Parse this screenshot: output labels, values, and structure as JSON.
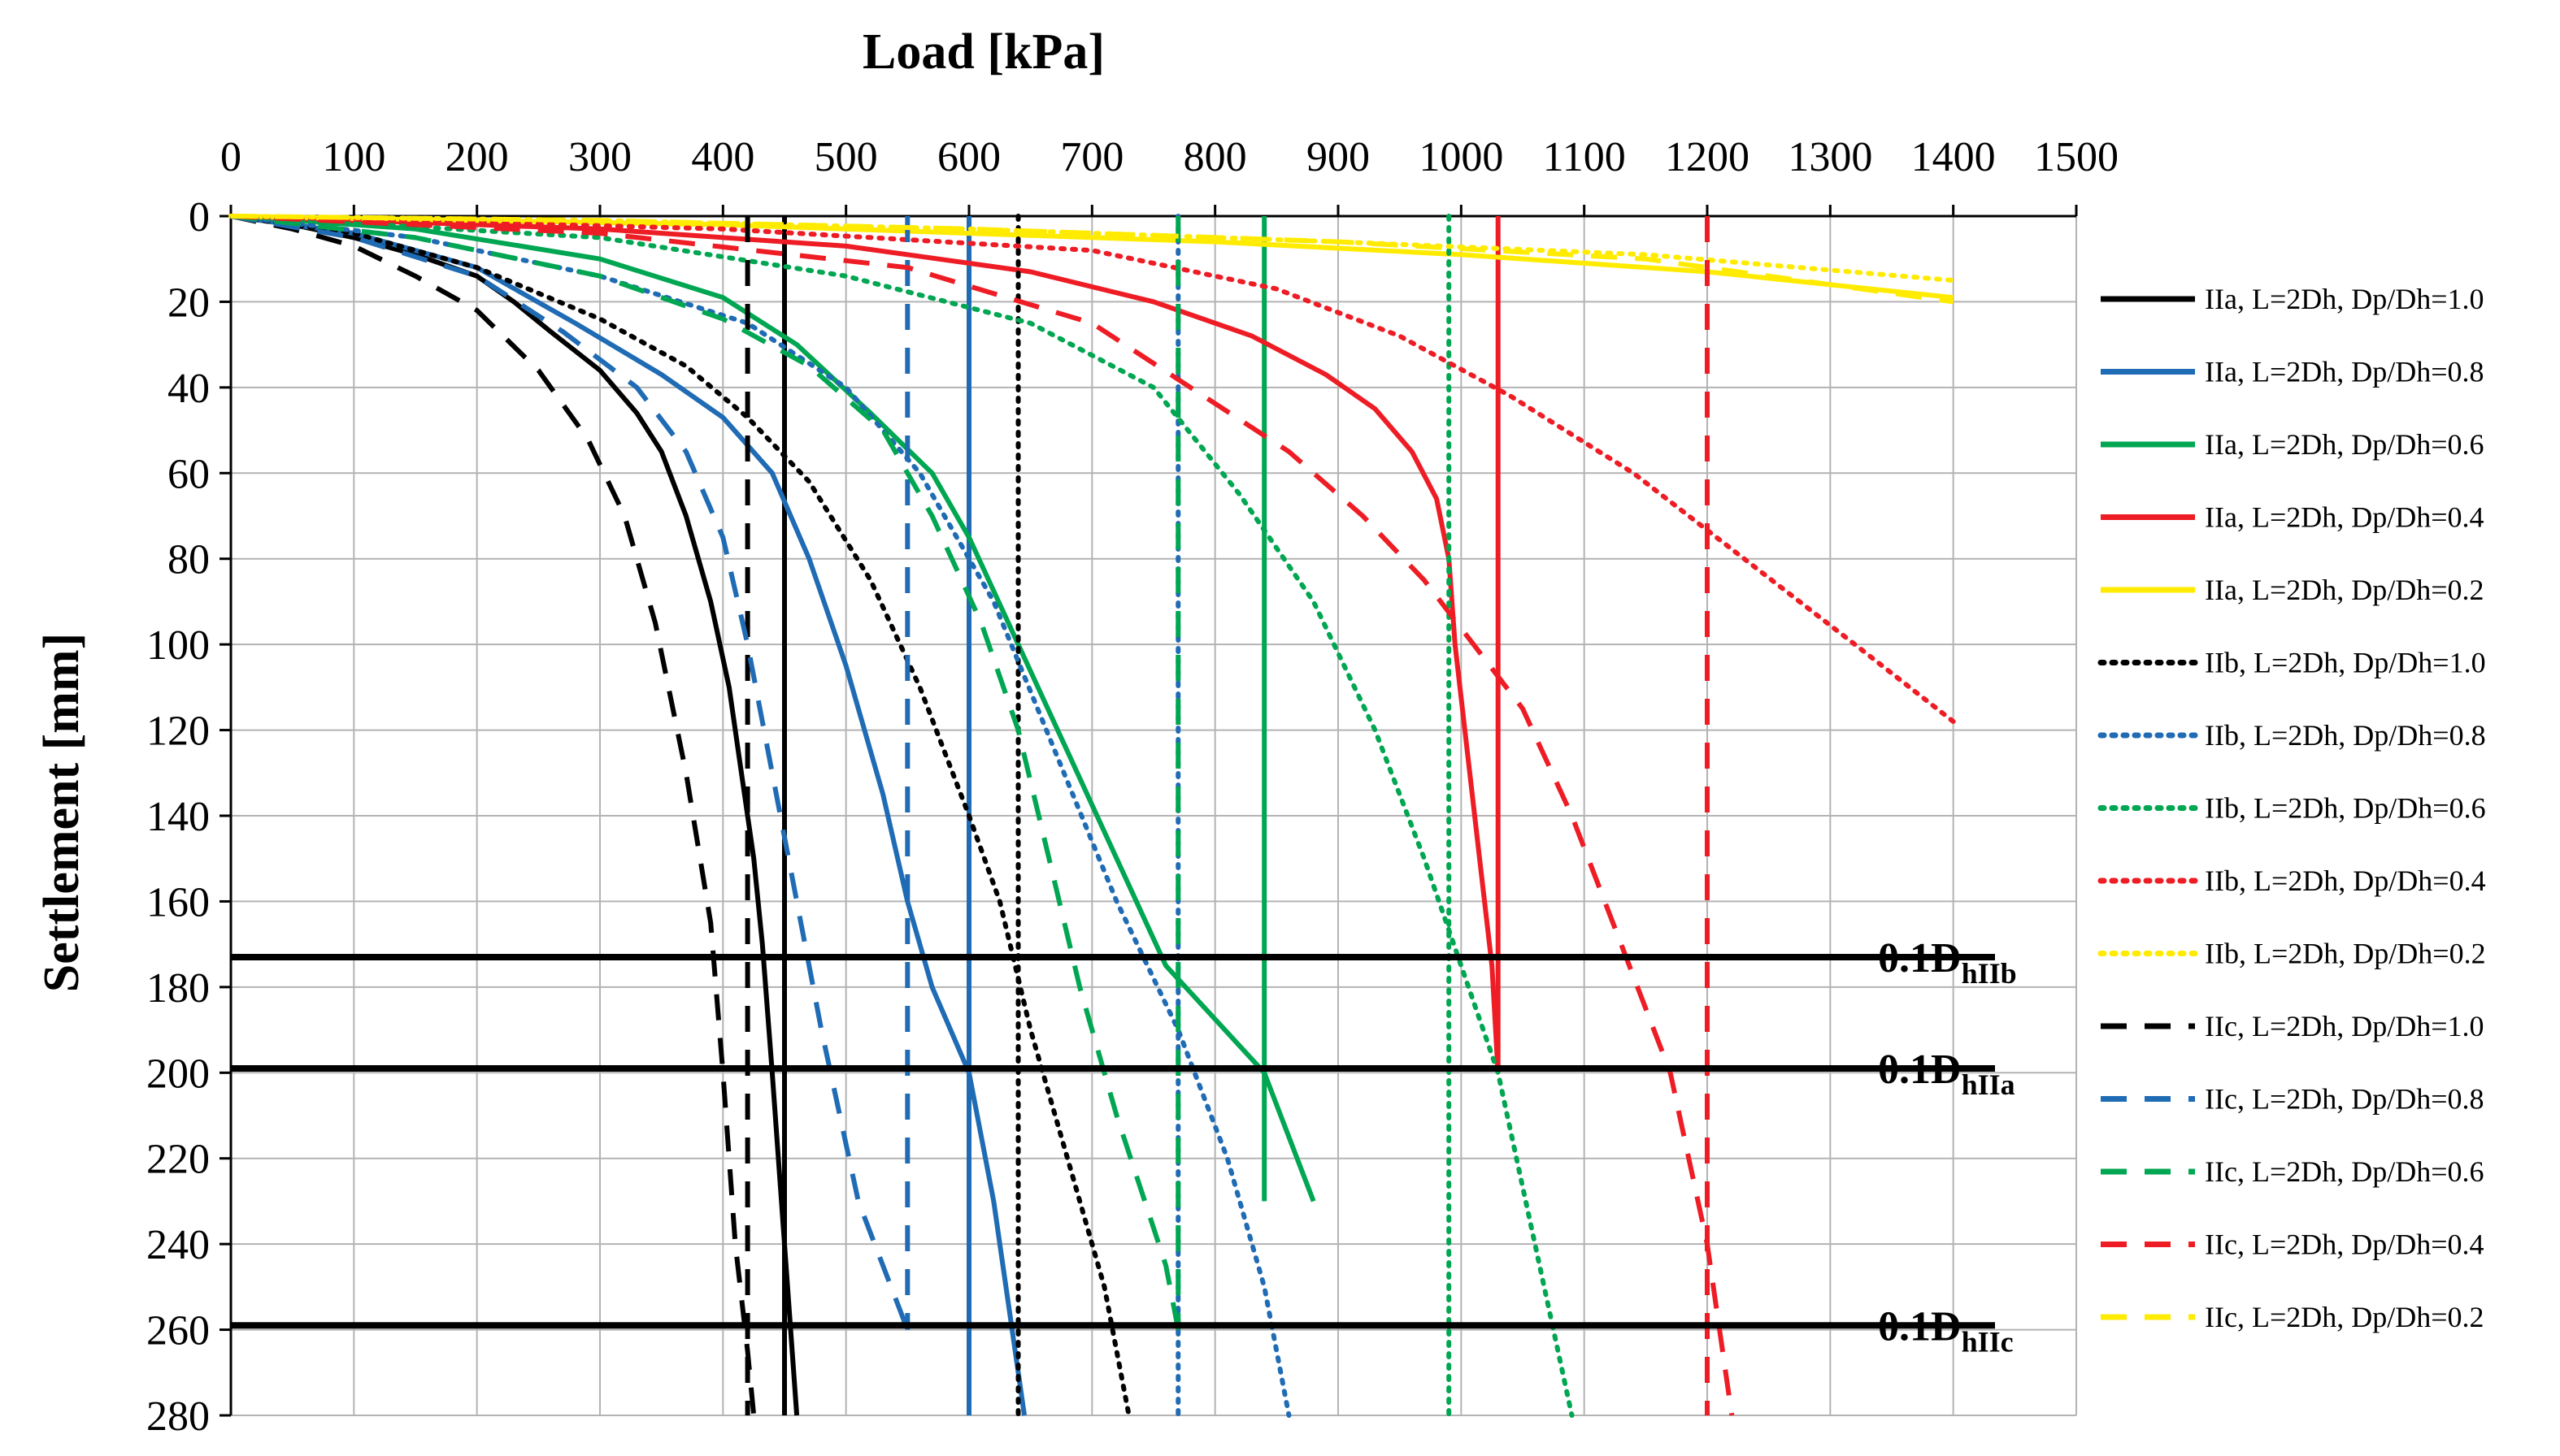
{
  "chart_data": {
    "type": "line",
    "title": "Load [kPa]",
    "xlabel": "Load [kPa]",
    "ylabel": "Settlement [mm]",
    "xlim": [
      0,
      1500
    ],
    "ylim": [
      0,
      280
    ],
    "x_ticks": [
      0,
      100,
      200,
      300,
      400,
      500,
      600,
      700,
      800,
      900,
      1000,
      1100,
      1200,
      1300,
      1400,
      1500
    ],
    "y_ticks": [
      0,
      20,
      40,
      60,
      80,
      100,
      120,
      140,
      160,
      180,
      200,
      220,
      240,
      260,
      280
    ],
    "grid": true,
    "legend_position": "right",
    "colors": {
      "1.0": "#000000",
      "0.8": "#1f6bb4",
      "0.6": "#00a651",
      "0.4": "#ee1c24",
      "0.2": "#ffeb00"
    },
    "reference_lines": [
      {
        "label": "0.1D",
        "subscript": "hIIb",
        "y": 173
      },
      {
        "label": "0.1D",
        "subscript": "hIIa",
        "y": 199
      },
      {
        "label": "0.1D",
        "subscript": "hIIc",
        "y": 259
      }
    ],
    "series": [
      {
        "name": "IIa, L=2Dh, Dp/Dh=1.0",
        "style": "solid",
        "color": "#000000",
        "points": [
          [
            0,
            0
          ],
          [
            50,
            2
          ],
          [
            100,
            5
          ],
          [
            150,
            9
          ],
          [
            200,
            14
          ],
          [
            230,
            20
          ],
          [
            260,
            27
          ],
          [
            300,
            36
          ],
          [
            330,
            46
          ],
          [
            350,
            55
          ],
          [
            370,
            70
          ],
          [
            390,
            90
          ],
          [
            405,
            110
          ],
          [
            415,
            130
          ],
          [
            425,
            150
          ],
          [
            432,
            170
          ],
          [
            440,
            200
          ],
          [
            450,
            240
          ],
          [
            460,
            280
          ]
        ],
        "vertical_x": 450
      },
      {
        "name": "IIa, L=2Dh, Dp/Dh=0.8",
        "style": "solid",
        "color": "#1f6bb4",
        "points": [
          [
            0,
            0
          ],
          [
            100,
            4
          ],
          [
            200,
            12
          ],
          [
            280,
            25
          ],
          [
            350,
            37
          ],
          [
            400,
            47
          ],
          [
            440,
            60
          ],
          [
            470,
            80
          ],
          [
            500,
            105
          ],
          [
            530,
            135
          ],
          [
            550,
            160
          ],
          [
            570,
            180
          ],
          [
            600,
            200
          ],
          [
            620,
            230
          ],
          [
            645,
            280
          ]
        ],
        "vertical_x": 600
      },
      {
        "name": "IIa, L=2Dh, Dp/Dh=0.6",
        "style": "solid",
        "color": "#00a651",
        "points": [
          [
            0,
            0
          ],
          [
            150,
            3
          ],
          [
            300,
            10
          ],
          [
            400,
            19
          ],
          [
            460,
            30
          ],
          [
            520,
            46
          ],
          [
            570,
            60
          ],
          [
            600,
            75
          ],
          [
            640,
            100
          ],
          [
            680,
            125
          ],
          [
            720,
            150
          ],
          [
            760,
            175
          ],
          [
            840,
            200
          ],
          [
            880,
            230
          ]
        ],
        "vertical_x": 840
      },
      {
        "name": "IIa, L=2Dh, Dp/Dh=0.4",
        "style": "solid",
        "color": "#ee1c24",
        "points": [
          [
            0,
            0
          ],
          [
            300,
            3
          ],
          [
            500,
            7
          ],
          [
            650,
            13
          ],
          [
            750,
            20
          ],
          [
            830,
            28
          ],
          [
            890,
            37
          ],
          [
            930,
            45
          ],
          [
            960,
            55
          ],
          [
            980,
            66
          ],
          [
            990,
            80
          ],
          [
            995,
            100
          ],
          [
            1005,
            125
          ],
          [
            1015,
            150
          ],
          [
            1025,
            175
          ],
          [
            1030,
            200
          ]
        ],
        "vertical_x": 1030
      },
      {
        "name": "IIa, L=2Dh, Dp/Dh=0.2",
        "style": "solid",
        "color": "#ffeb00",
        "points": [
          [
            0,
            0
          ],
          [
            200,
            1
          ],
          [
            400,
            2
          ],
          [
            600,
            4
          ],
          [
            800,
            6
          ],
          [
            1000,
            9
          ],
          [
            1200,
            13
          ],
          [
            1400,
            19
          ]
        ]
      },
      {
        "name": "IIb, L=2Dh, Dp/Dh=1.0",
        "style": "dotted",
        "color": "#000000",
        "points": [
          [
            0,
            0
          ],
          [
            100,
            4
          ],
          [
            200,
            12
          ],
          [
            300,
            24
          ],
          [
            370,
            35
          ],
          [
            420,
            47
          ],
          [
            470,
            62
          ],
          [
            520,
            85
          ],
          [
            560,
            110
          ],
          [
            600,
            140
          ],
          [
            625,
            160
          ],
          [
            650,
            190
          ],
          [
            680,
            220
          ],
          [
            710,
            250
          ],
          [
            730,
            280
          ]
        ],
        "vertical_x": 640
      },
      {
        "name": "IIb, L=2Dh, Dp/Dh=0.8",
        "style": "dotted",
        "color": "#1f6bb4",
        "points": [
          [
            0,
            0
          ],
          [
            150,
            5
          ],
          [
            300,
            14
          ],
          [
            420,
            25
          ],
          [
            500,
            40
          ],
          [
            560,
            60
          ],
          [
            620,
            90
          ],
          [
            670,
            125
          ],
          [
            720,
            160
          ],
          [
            770,
            190
          ],
          [
            810,
            220
          ],
          [
            840,
            250
          ],
          [
            860,
            280
          ]
        ],
        "vertical_x": 770
      },
      {
        "name": "IIb, L=2Dh, Dp/Dh=0.6",
        "style": "dotted",
        "color": "#00a651",
        "points": [
          [
            0,
            0
          ],
          [
            300,
            5
          ],
          [
            500,
            14
          ],
          [
            650,
            25
          ],
          [
            750,
            40
          ],
          [
            820,
            65
          ],
          [
            880,
            90
          ],
          [
            930,
            120
          ],
          [
            970,
            150
          ],
          [
            1000,
            175
          ],
          [
            1030,
            200
          ],
          [
            1060,
            240
          ],
          [
            1090,
            280
          ]
        ],
        "vertical_x": 990
      },
      {
        "name": "IIb, L=2Dh, Dp/Dh=0.4",
        "style": "dotted",
        "color": "#ee1c24",
        "points": [
          [
            0,
            0
          ],
          [
            400,
            3
          ],
          [
            700,
            8
          ],
          [
            850,
            17
          ],
          [
            950,
            28
          ],
          [
            1040,
            42
          ],
          [
            1140,
            60
          ],
          [
            1230,
            80
          ],
          [
            1320,
            100
          ],
          [
            1400,
            118
          ]
        ]
      },
      {
        "name": "IIb, L=2Dh, Dp/Dh=0.2",
        "style": "dotted",
        "color": "#ffeb00",
        "points": [
          [
            0,
            0
          ],
          [
            300,
            1
          ],
          [
            600,
            3
          ],
          [
            900,
            6
          ],
          [
            1150,
            9
          ],
          [
            1400,
            15
          ]
        ]
      },
      {
        "name": "IIc, L=2Dh, Dp/Dh=1.0",
        "style": "dashed",
        "color": "#000000",
        "points": [
          [
            0,
            0
          ],
          [
            50,
            3
          ],
          [
            100,
            7
          ],
          [
            150,
            14
          ],
          [
            200,
            22
          ],
          [
            250,
            36
          ],
          [
            290,
            52
          ],
          [
            320,
            70
          ],
          [
            345,
            95
          ],
          [
            370,
            130
          ],
          [
            390,
            165
          ],
          [
            400,
            200
          ],
          [
            410,
            240
          ],
          [
            420,
            265
          ],
          [
            425,
            280
          ]
        ],
        "vertical_x": 420
      },
      {
        "name": "IIc, L=2Dh, Dp/Dh=0.8",
        "style": "dashed",
        "color": "#1f6bb4",
        "points": [
          [
            0,
            0
          ],
          [
            100,
            5
          ],
          [
            200,
            14
          ],
          [
            270,
            27
          ],
          [
            330,
            40
          ],
          [
            370,
            55
          ],
          [
            400,
            75
          ],
          [
            420,
            100
          ],
          [
            440,
            130
          ],
          [
            460,
            160
          ],
          [
            480,
            190
          ],
          [
            510,
            230
          ],
          [
            550,
            260
          ]
        ],
        "vertical_x": 550
      },
      {
        "name": "IIc, L=2Dh, Dp/Dh=0.6",
        "style": "dashed",
        "color": "#00a651",
        "points": [
          [
            0,
            0
          ],
          [
            150,
            5
          ],
          [
            300,
            14
          ],
          [
            400,
            24
          ],
          [
            470,
            35
          ],
          [
            530,
            50
          ],
          [
            570,
            70
          ],
          [
            610,
            95
          ],
          [
            640,
            120
          ],
          [
            665,
            150
          ],
          [
            690,
            180
          ],
          [
            720,
            210
          ],
          [
            760,
            245
          ],
          [
            770,
            260
          ]
        ],
        "vertical_x": 770
      },
      {
        "name": "IIc, L=2Dh, Dp/Dh=0.4",
        "style": "dashed",
        "color": "#ee1c24",
        "points": [
          [
            0,
            0
          ],
          [
            300,
            4
          ],
          [
            550,
            12
          ],
          [
            700,
            25
          ],
          [
            780,
            40
          ],
          [
            860,
            55
          ],
          [
            920,
            70
          ],
          [
            970,
            85
          ],
          [
            1010,
            100
          ],
          [
            1050,
            115
          ],
          [
            1090,
            140
          ],
          [
            1130,
            170
          ],
          [
            1170,
            200
          ],
          [
            1200,
            240
          ],
          [
            1220,
            280
          ]
        ],
        "vertical_x": 1200
      },
      {
        "name": "IIc, L=2Dh, Dp/Dh=0.2",
        "style": "dashed",
        "color": "#ffeb00",
        "points": [
          [
            0,
            0
          ],
          [
            300,
            1
          ],
          [
            600,
            3
          ],
          [
            900,
            6
          ],
          [
            1150,
            10
          ],
          [
            1400,
            20
          ]
        ]
      }
    ]
  }
}
